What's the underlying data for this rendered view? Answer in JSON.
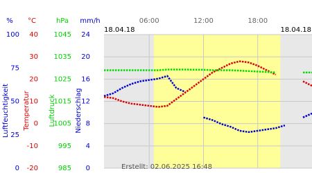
{
  "chart_data": {
    "type": "line",
    "date_left": "18.04.18",
    "date_right": "18.04.18",
    "footer": "Erstellt: 02.06.2025 16:48",
    "xlim": [
      1,
      24
    ],
    "xticks": [
      {
        "value": 6,
        "label": "06:00"
      },
      {
        "value": 12,
        "label": "12:00"
      },
      {
        "value": 18,
        "label": "18:00"
      }
    ],
    "daylight": [
      6.5,
      20.5
    ],
    "grid": true,
    "axes": [
      {
        "unit": "%",
        "label": "Luftfeuchtigkeit",
        "color": "#0000cc",
        "ylim": [
          0,
          100
        ],
        "yticks": [
          0,
          25,
          50,
          75,
          100
        ]
      },
      {
        "unit": "°C",
        "label": "Temperatur",
        "color": "#dd0000",
        "ylim": [
          -20,
          40
        ],
        "yticks": [
          -20,
          -10,
          0,
          10,
          20,
          30,
          40
        ]
      },
      {
        "unit": "hPa",
        "label": "Luftdruck",
        "color": "#00cc00",
        "ylim": [
          985,
          1045
        ],
        "yticks": [
          985,
          995,
          1005,
          1015,
          1025,
          1035,
          1045
        ]
      },
      {
        "unit": "mm/h",
        "label": "Niederschlag",
        "color": "#0000cc",
        "ylim": [
          0,
          24
        ],
        "yticks": [
          0,
          4,
          8,
          12,
          16,
          20,
          24
        ]
      }
    ],
    "x": [
      1,
      2,
      3,
      4,
      5,
      6,
      7,
      8,
      9,
      10,
      11,
      12,
      13,
      14,
      15,
      16,
      17,
      18,
      19,
      20,
      21,
      22,
      23,
      24
    ],
    "series": [
      {
        "color": "#0000cc",
        "axis": 0,
        "values": [
          54,
          56,
          60,
          63,
          65,
          66,
          67,
          69,
          60,
          57,
          null,
          38,
          36,
          33,
          31,
          28,
          27,
          28,
          29,
          30,
          32,
          null,
          38,
          41
        ]
      },
      {
        "color": "#dd0000",
        "axis": 1,
        "values": [
          12,
          11.5,
          10,
          9,
          8.5,
          8,
          7.5,
          8,
          11,
          14,
          17,
          20,
          23,
          25,
          27,
          28,
          27.5,
          26,
          24,
          22,
          null,
          null,
          19,
          17
        ]
      },
      {
        "color": "#00dd00",
        "axis": 2,
        "values": [
          1029,
          1029,
          1029,
          1029,
          1029,
          1029,
          1029,
          1029.3,
          1029.3,
          1029.3,
          1029.2,
          1029.2,
          1029,
          1029,
          1029,
          1028.8,
          1028.6,
          1028.4,
          1028.2,
          1028,
          null,
          null,
          1028,
          1028
        ]
      }
    ]
  }
}
